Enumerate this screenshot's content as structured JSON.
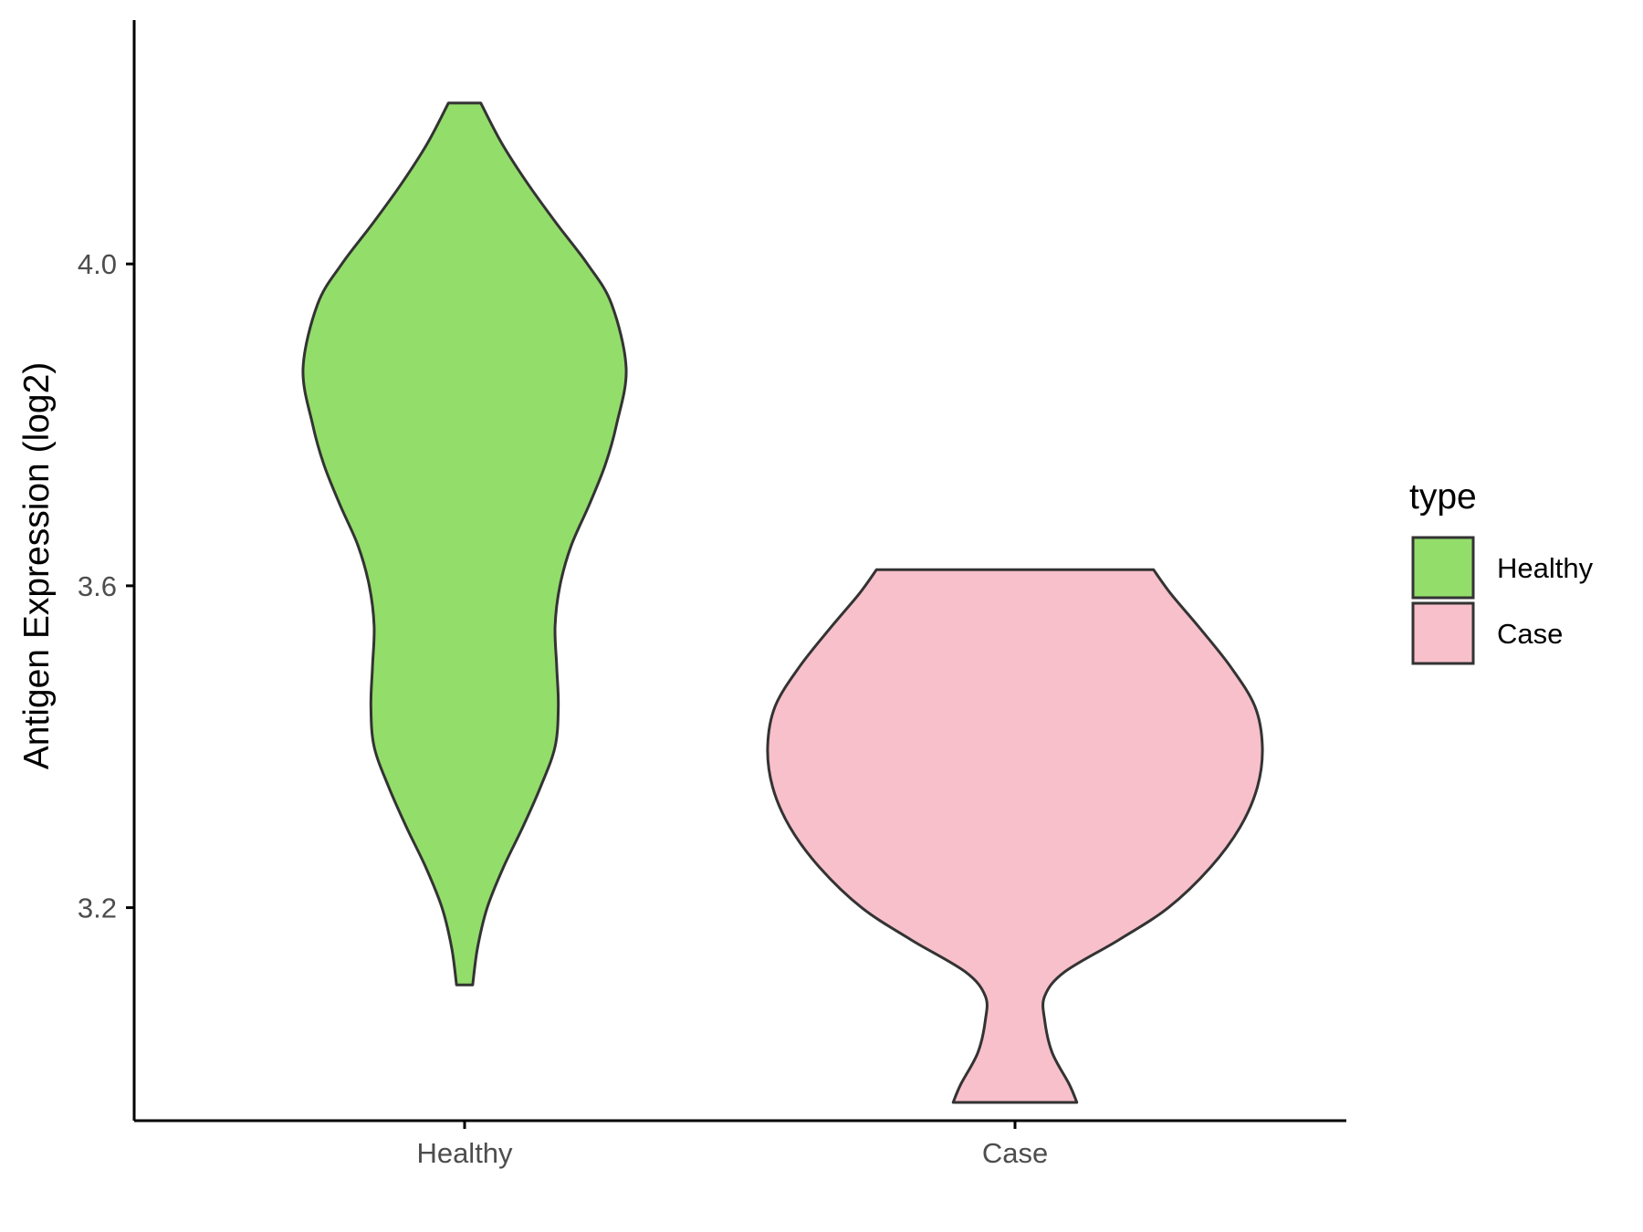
{
  "chart_data": {
    "type": "violin",
    "ylabel": "Antigen Expression (log2)",
    "xlabel": "",
    "categories": [
      "Healthy",
      "Case"
    ],
    "y_ticks": [
      3.2,
      3.6,
      4.0
    ],
    "y_tick_labels": [
      "3.2",
      "3.6",
      "4.0"
    ],
    "ylim": [
      2.9,
      4.27
    ],
    "grid": false,
    "legend": {
      "title": "type",
      "position": "right",
      "entries": [
        {
          "label": "Healthy",
          "color": "#93DD6B"
        },
        {
          "label": "Case",
          "color": "#F7C0CB"
        }
      ]
    },
    "series": [
      {
        "category": "Healthy",
        "color": "#93DD6B",
        "min": 3.104,
        "max": 4.2,
        "density_profile": [
          [
            3.104,
            0.05
          ],
          [
            3.15,
            0.08
          ],
          [
            3.2,
            0.14
          ],
          [
            3.25,
            0.24
          ],
          [
            3.3,
            0.36
          ],
          [
            3.35,
            0.47
          ],
          [
            3.4,
            0.56
          ],
          [
            3.45,
            0.58
          ],
          [
            3.5,
            0.57
          ],
          [
            3.55,
            0.56
          ],
          [
            3.6,
            0.59
          ],
          [
            3.65,
            0.66
          ],
          [
            3.7,
            0.77
          ],
          [
            3.75,
            0.87
          ],
          [
            3.8,
            0.94
          ],
          [
            3.87,
            1.0
          ],
          [
            3.95,
            0.91
          ],
          [
            4.0,
            0.76
          ],
          [
            4.05,
            0.57
          ],
          [
            4.1,
            0.39
          ],
          [
            4.15,
            0.23
          ],
          [
            4.2,
            0.1
          ]
        ]
      },
      {
        "category": "Case",
        "color": "#F7C0CB",
        "min": 2.958,
        "max": 3.62,
        "density_profile": [
          [
            2.958,
            0.25
          ],
          [
            2.98,
            0.22
          ],
          [
            3.02,
            0.15
          ],
          [
            3.06,
            0.12
          ],
          [
            3.09,
            0.12
          ],
          [
            3.12,
            0.2
          ],
          [
            3.16,
            0.42
          ],
          [
            3.2,
            0.62
          ],
          [
            3.25,
            0.79
          ],
          [
            3.3,
            0.91
          ],
          [
            3.35,
            0.98
          ],
          [
            3.4,
            1.0
          ],
          [
            3.45,
            0.97
          ],
          [
            3.5,
            0.87
          ],
          [
            3.55,
            0.74
          ],
          [
            3.59,
            0.63
          ],
          [
            3.62,
            0.56
          ]
        ]
      }
    ]
  }
}
